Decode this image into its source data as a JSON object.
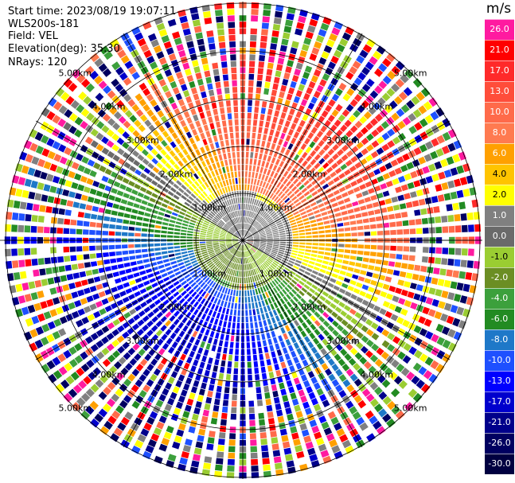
{
  "header": {
    "start_time": "Start time: 2023/08/19 19:07:11",
    "instrument": "WLS200s-181",
    "field": "Field: VEL",
    "elevation": "Elevation(deg): 35.30",
    "nrays": "NRays: 120"
  },
  "plot": {
    "range_rings_km": [
      1.0,
      2.0,
      3.0,
      4.0,
      5.0
    ],
    "ring_labels": [
      "1.00km",
      "2.00km",
      "3.00km",
      "4.00km",
      "5.00km"
    ],
    "nrays": 120,
    "max_range_km": 5.0
  },
  "colorbar": {
    "unit": "m/s",
    "levels": [
      {
        "label": "26.0",
        "color": "#ff1aa0"
      },
      {
        "label": "21.0",
        "color": "#ff0000"
      },
      {
        "label": "17.0",
        "color": "#ff2a2a"
      },
      {
        "label": "13.0",
        "color": "#ff4d3a"
      },
      {
        "label": "10.0",
        "color": "#ff6a4a"
      },
      {
        "label": "8.0",
        "color": "#ff7a50"
      },
      {
        "label": "6.0",
        "color": "#ffa000"
      },
      {
        "label": "4.0",
        "color": "#ffc400"
      },
      {
        "label": "2.0",
        "color": "#ffff00"
      },
      {
        "label": "1.0",
        "color": "#808080"
      },
      {
        "label": "0.0",
        "color": "#6a6a6a"
      },
      {
        "label": "-1.0",
        "color": "#9acd32"
      },
      {
        "label": "-2.0",
        "color": "#6b8e23"
      },
      {
        "label": "-4.0",
        "color": "#3ca03c"
      },
      {
        "label": "-6.0",
        "color": "#228b22"
      },
      {
        "label": "-8.0",
        "color": "#1e78c8"
      },
      {
        "label": "-10.0",
        "color": "#1e50ff"
      },
      {
        "label": "-13.0",
        "color": "#0000ff"
      },
      {
        "label": "-17.0",
        "color": "#0000cd"
      },
      {
        "label": "-21.0",
        "color": "#00008b"
      },
      {
        "label": "-26.0",
        "color": "#000060"
      },
      {
        "label": "-30.0",
        "color": "#000040"
      }
    ]
  }
}
